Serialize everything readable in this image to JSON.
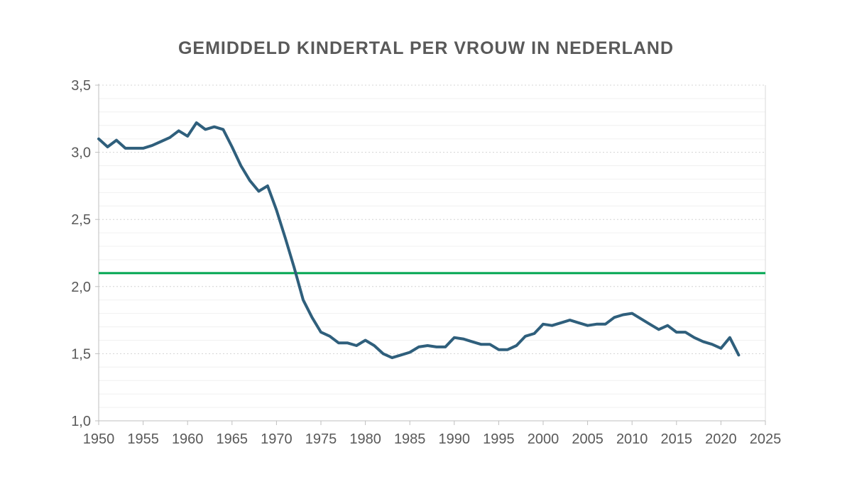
{
  "title": {
    "text": "GEMIDDELD KINDERTAL PER VROUW IN NEDERLAND"
  },
  "colors": {
    "background": "#FFFFFF",
    "title_text": "#595959",
    "tick_label": "#595959",
    "axis_line": "#BFBFBF",
    "plot_right_border": "#D9D9D9",
    "gridline_major": "#D4D4D4",
    "gridline_minor": "#F0F0F0",
    "series_line": "#2F5F7C",
    "reference_line": "#00A651"
  },
  "chart_data": {
    "type": "line",
    "title": "GEMIDDELD KINDERTAL PER VROUW IN NEDERLAND",
    "xlabel": "",
    "ylabel": "",
    "xlim": [
      1950,
      2025
    ],
    "ylim": [
      1.0,
      3.5
    ],
    "legend": "none",
    "grid": {
      "horizontal_major": true,
      "horizontal_minor": true,
      "vertical": false
    },
    "y_minor_grid_step": 0.1,
    "decimal_separator": ",",
    "y_ticks": [
      {
        "value": 1.0,
        "label": "1,0"
      },
      {
        "value": 1.5,
        "label": "1,5"
      },
      {
        "value": 2.0,
        "label": "2,0"
      },
      {
        "value": 2.5,
        "label": "2,5"
      },
      {
        "value": 3.0,
        "label": "3,0"
      },
      {
        "value": 3.5,
        "label": "3,5"
      }
    ],
    "x_ticks": [
      {
        "value": 1950,
        "label": "1950"
      },
      {
        "value": 1955,
        "label": "1955"
      },
      {
        "value": 1960,
        "label": "1960"
      },
      {
        "value": 1965,
        "label": "1965"
      },
      {
        "value": 1970,
        "label": "1970"
      },
      {
        "value": 1975,
        "label": "1975"
      },
      {
        "value": 1980,
        "label": "1980"
      },
      {
        "value": 1985,
        "label": "1985"
      },
      {
        "value": 1990,
        "label": "1990"
      },
      {
        "value": 1995,
        "label": "1995"
      },
      {
        "value": 2000,
        "label": "2000"
      },
      {
        "value": 2005,
        "label": "2005"
      },
      {
        "value": 2010,
        "label": "2010"
      },
      {
        "value": 2015,
        "label": "2015"
      },
      {
        "value": 2020,
        "label": "2020"
      },
      {
        "value": 2025,
        "label": "2025"
      }
    ],
    "reference_line": {
      "value": 2.1,
      "color": "#00A651"
    },
    "series": [
      {
        "name": "gemiddeld kindertal per vrouw",
        "color": "#2F5F7C",
        "x": [
          1950,
          1951,
          1952,
          1953,
          1954,
          1955,
          1956,
          1957,
          1958,
          1959,
          1960,
          1961,
          1962,
          1963,
          1964,
          1965,
          1966,
          1967,
          1968,
          1969,
          1970,
          1971,
          1972,
          1973,
          1974,
          1975,
          1976,
          1977,
          1978,
          1979,
          1980,
          1981,
          1982,
          1983,
          1984,
          1985,
          1986,
          1987,
          1988,
          1989,
          1990,
          1991,
          1992,
          1993,
          1994,
          1995,
          1996,
          1997,
          1998,
          1999,
          2000,
          2001,
          2002,
          2003,
          2004,
          2005,
          2006,
          2007,
          2008,
          2009,
          2010,
          2011,
          2012,
          2013,
          2014,
          2015,
          2016,
          2017,
          2018,
          2019,
          2020,
          2021,
          2022
        ],
        "values": [
          3.1,
          3.04,
          3.09,
          3.03,
          3.03,
          3.03,
          3.05,
          3.08,
          3.11,
          3.16,
          3.12,
          3.22,
          3.17,
          3.19,
          3.17,
          3.04,
          2.9,
          2.79,
          2.71,
          2.75,
          2.57,
          2.36,
          2.14,
          1.9,
          1.77,
          1.66,
          1.63,
          1.58,
          1.58,
          1.56,
          1.6,
          1.56,
          1.5,
          1.47,
          1.49,
          1.51,
          1.55,
          1.56,
          1.55,
          1.55,
          1.62,
          1.61,
          1.59,
          1.57,
          1.57,
          1.53,
          1.53,
          1.56,
          1.63,
          1.65,
          1.72,
          1.71,
          1.73,
          1.75,
          1.73,
          1.71,
          1.72,
          1.72,
          1.77,
          1.79,
          1.8,
          1.76,
          1.72,
          1.68,
          1.71,
          1.66,
          1.66,
          1.62,
          1.59,
          1.57,
          1.54,
          1.62,
          1.49
        ]
      }
    ]
  }
}
